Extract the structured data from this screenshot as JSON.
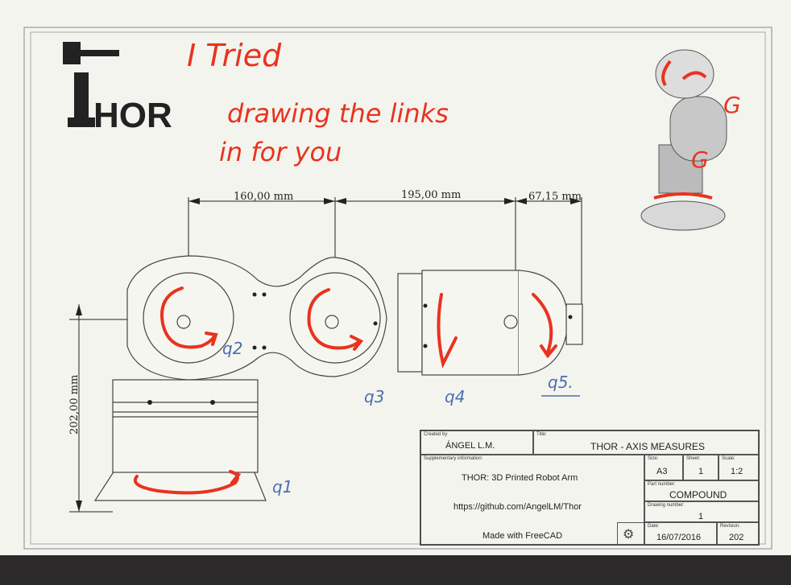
{
  "logo": {
    "text": "HOR"
  },
  "handwriting": {
    "line1": "I Tried",
    "line2": "drawing the links",
    "line3": "in for you",
    "q1": "q1",
    "q2": "q2",
    "q3": "q3",
    "q4": "q4",
    "q5": "q5."
  },
  "dimensions": {
    "d1": "160,00 mm",
    "d2": "195,00 mm",
    "d3": "67,15 mm",
    "height": "202,00 mm"
  },
  "title_block": {
    "created_by_label": "Created by",
    "created_by": "ÁNGEL L.M.",
    "title_label": "Title:",
    "title": "THOR - AXIS MEASURES",
    "supplementary_label": "Supplementary information:",
    "description": "THOR: 3D Printed Robot Arm",
    "url": "https://github.com/AngelLM/Thor",
    "made_with": "Made with FreeCAD",
    "size_label": "Size:",
    "size": "A3",
    "sheet_label": "Sheet:",
    "sheet": "1",
    "scale_label": "Scale:",
    "scale": "1:2",
    "part_label": "Part number:",
    "part": "COMPOUND",
    "drawing_label": "Drawing number:",
    "drawing": "1",
    "date_label": "Date:",
    "date": "16/07/2016",
    "revision_label": "Revision:",
    "revision": "202"
  },
  "colors": {
    "annotation": "#e8331f",
    "pencil": "#4a6fb0"
  }
}
